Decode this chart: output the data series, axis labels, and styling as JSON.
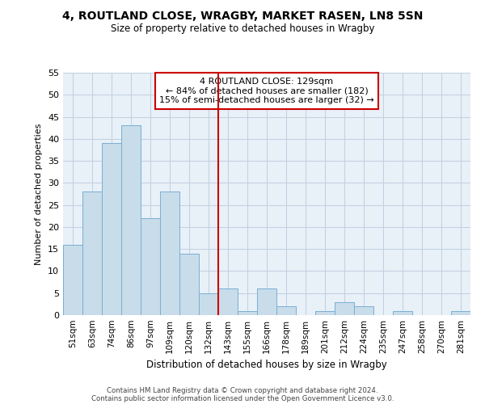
{
  "title": "4, ROUTLAND CLOSE, WRAGBY, MARKET RASEN, LN8 5SN",
  "subtitle": "Size of property relative to detached houses in Wragby",
  "xlabel": "Distribution of detached houses by size in Wragby",
  "ylabel": "Number of detached properties",
  "bar_color": "#c8dcea",
  "bar_edge_color": "#7aafd4",
  "background_color": "#ffffff",
  "plot_bg_color": "#e8f0f8",
  "grid_color": "#c0cfe0",
  "categories": [
    "51sqm",
    "63sqm",
    "74sqm",
    "86sqm",
    "97sqm",
    "109sqm",
    "120sqm",
    "132sqm",
    "143sqm",
    "155sqm",
    "166sqm",
    "178sqm",
    "189sqm",
    "201sqm",
    "212sqm",
    "224sqm",
    "235sqm",
    "247sqm",
    "258sqm",
    "270sqm",
    "281sqm"
  ],
  "values": [
    16,
    28,
    39,
    43,
    22,
    28,
    14,
    5,
    6,
    1,
    6,
    2,
    0,
    1,
    3,
    2,
    0,
    1,
    0,
    0,
    1
  ],
  "vline_x": 7.5,
  "vline_color": "#cc0000",
  "annotation_title": "4 ROUTLAND CLOSE: 129sqm",
  "annotation_line1": "← 84% of detached houses are smaller (182)",
  "annotation_line2": "15% of semi-detached houses are larger (32) →",
  "ylim": [
    0,
    55
  ],
  "yticks": [
    0,
    5,
    10,
    15,
    20,
    25,
    30,
    35,
    40,
    45,
    50,
    55
  ],
  "footer1": "Contains HM Land Registry data © Crown copyright and database right 2024.",
  "footer2": "Contains public sector information licensed under the Open Government Licence v3.0."
}
